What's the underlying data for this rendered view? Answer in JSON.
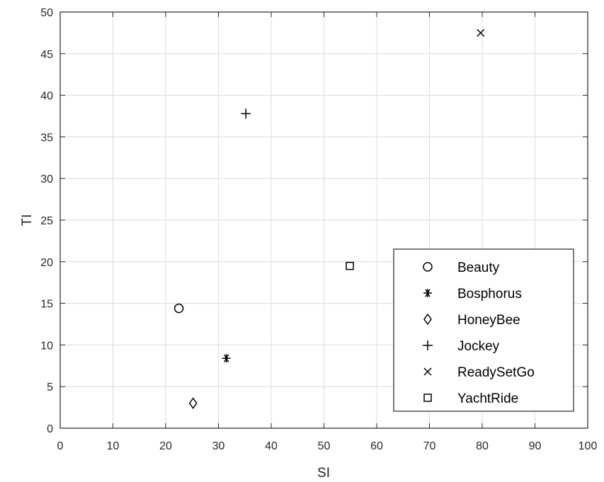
{
  "chart_data": {
    "type": "scatter",
    "title": "",
    "xlabel": "SI",
    "ylabel": "TI",
    "xlim": [
      0,
      100
    ],
    "ylim": [
      0,
      50
    ],
    "xticks": [
      0,
      10,
      20,
      30,
      40,
      50,
      60,
      70,
      80,
      90,
      100
    ],
    "yticks": [
      0,
      5,
      10,
      15,
      20,
      25,
      30,
      35,
      40,
      45,
      50
    ],
    "grid": true,
    "legend_position": "bottom-right",
    "series": [
      {
        "name": "Beauty",
        "marker": "circle",
        "x": [
          22.5
        ],
        "y": [
          14.4
        ]
      },
      {
        "name": "Bosphorus",
        "marker": "asterisk",
        "x": [
          31.5
        ],
        "y": [
          8.4
        ]
      },
      {
        "name": "HoneyBee",
        "marker": "diamond",
        "x": [
          25.2
        ],
        "y": [
          3.0
        ]
      },
      {
        "name": "Jockey",
        "marker": "plus",
        "x": [
          35.2
        ],
        "y": [
          37.8
        ]
      },
      {
        "name": "ReadySetGo",
        "marker": "cross",
        "x": [
          79.7
        ],
        "y": [
          47.5
        ]
      },
      {
        "name": "YachtRide",
        "marker": "square",
        "x": [
          54.9
        ],
        "y": [
          19.5
        ]
      }
    ]
  }
}
